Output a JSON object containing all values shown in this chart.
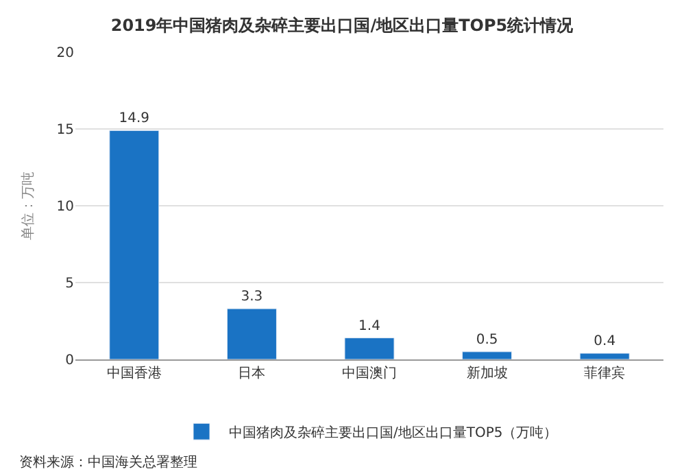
{
  "chart_data": {
    "type": "bar",
    "title": "2019年中国猪肉及杂碎主要出口国/地区出口量TOP5统计情况",
    "ylabel": "单位：万吨",
    "categories": [
      "中国香港",
      "日本",
      "中国澳门",
      "新加坡",
      "菲律宾"
    ],
    "series": [
      {
        "name": "中国猪肉及杂碎主要出口国/地区出口量TOP5（万吨）",
        "color": "#1a73c4",
        "values": [
          14.9,
          3.3,
          1.4,
          0.5,
          0.4
        ]
      }
    ],
    "ylim": [
      0,
      20
    ],
    "yticks": [
      0,
      5,
      10,
      15,
      20
    ],
    "grid": "y",
    "legend": "bottom",
    "data_labels": true,
    "annotations": [
      "资料来源：中国海关总署整理"
    ]
  }
}
